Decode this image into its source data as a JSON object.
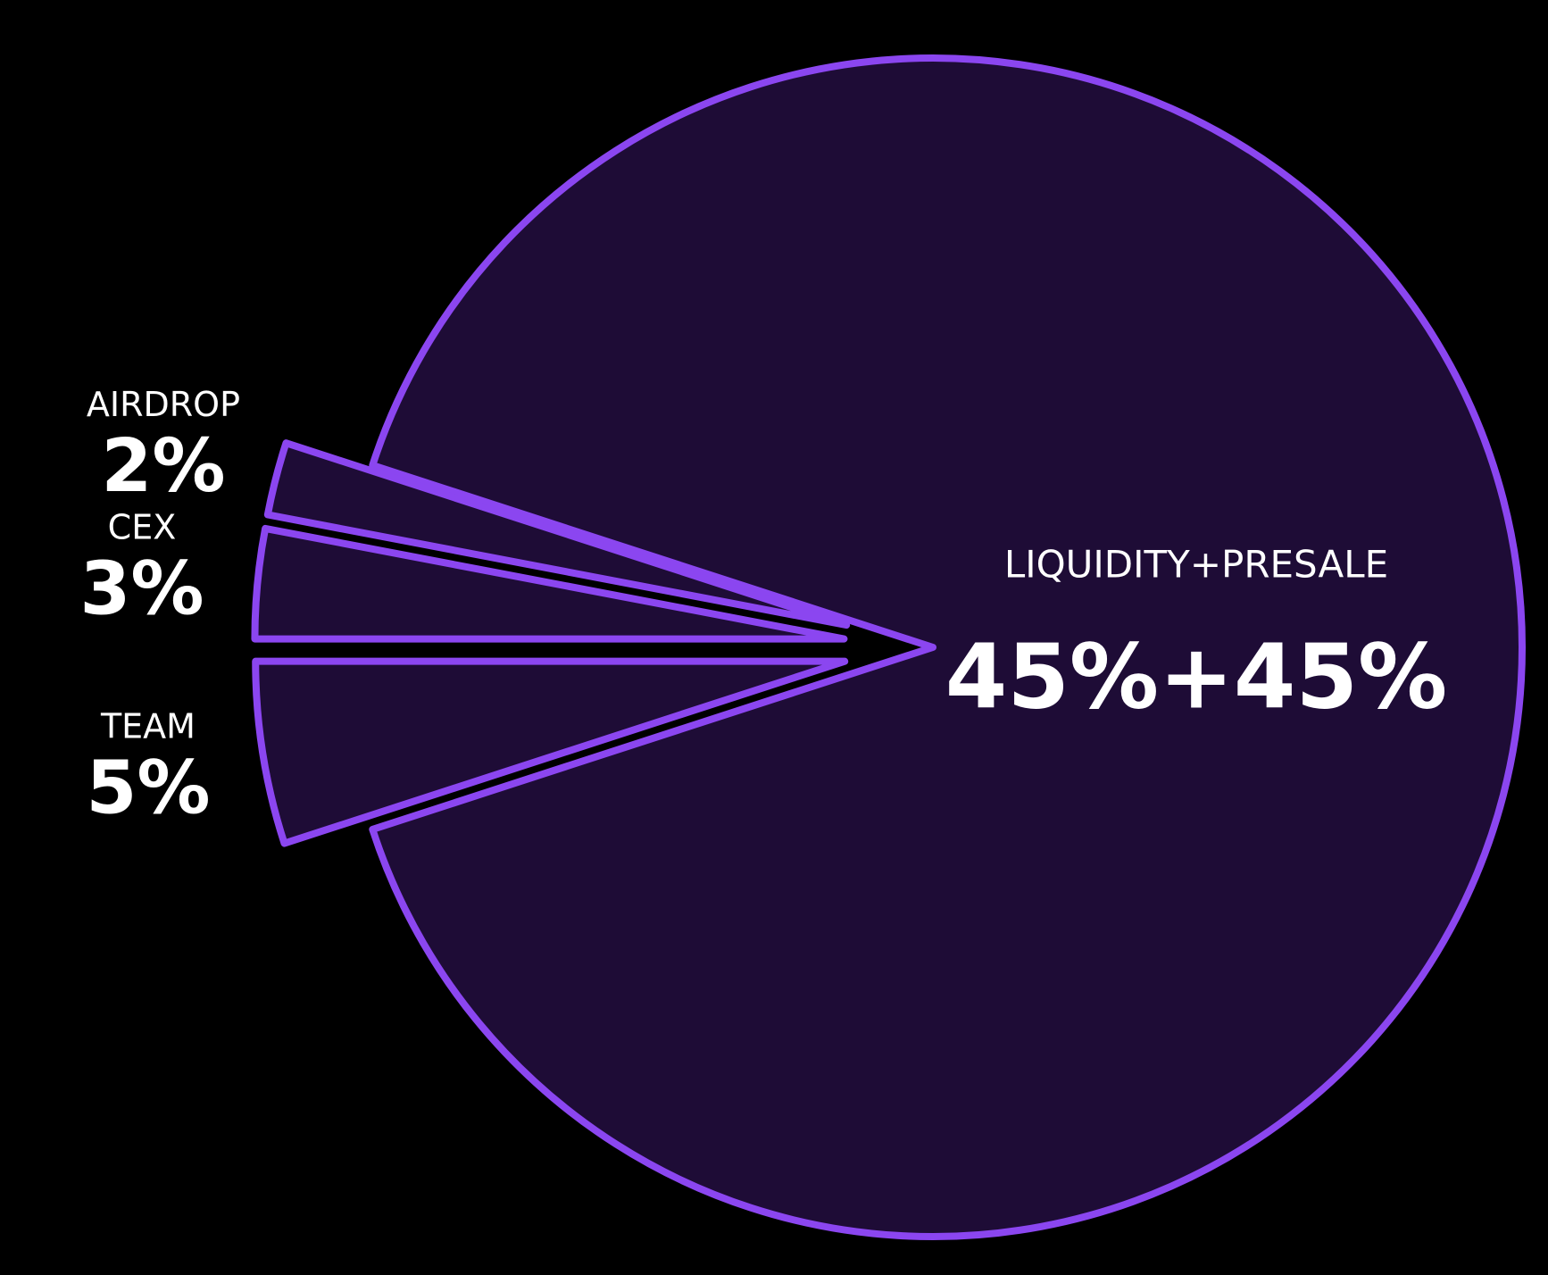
{
  "chart_data": {
    "type": "pie",
    "categories": [
      "LIQUIDITY+PRESALE",
      "TEAM",
      "CEX",
      "AIRDROP"
    ],
    "values": [
      90,
      5,
      3,
      2
    ],
    "value_labels": [
      "45%+45%",
      "5%",
      "3%",
      "2%"
    ],
    "color": "#8b46f0"
  }
}
